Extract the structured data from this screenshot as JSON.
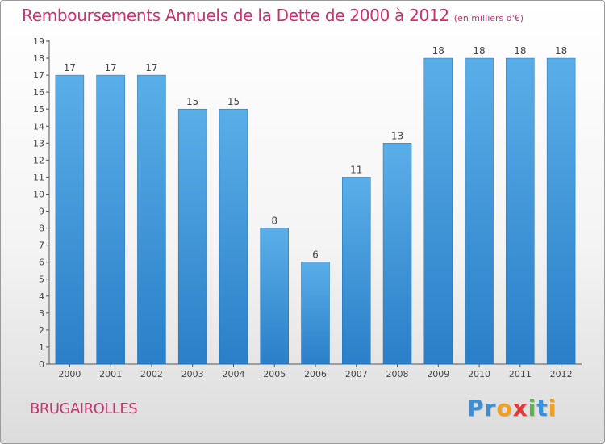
{
  "title": "Remboursements Annuels de la Dette de 2000 à 2012",
  "unit": "(en milliers d'€)",
  "place": "BRUGAIROLLES",
  "logo": {
    "text": "Proxiti",
    "letters": [
      "P",
      "r",
      "o",
      "x",
      "i",
      "t",
      "i"
    ],
    "colors": [
      "#3a8fd6",
      "#3a8fd6",
      "#f0a020",
      "#e03a3a",
      "#5ab54a",
      "#3a8fd6",
      "#f0a020"
    ]
  },
  "colors": {
    "title": "#c8326e",
    "bar": "#2a7fc8",
    "bar_light": "#5aaee8",
    "axis": "#555555"
  },
  "chart_data": {
    "type": "bar",
    "categories": [
      "2000",
      "2001",
      "2002",
      "2003",
      "2004",
      "2005",
      "2006",
      "2007",
      "2008",
      "2009",
      "2010",
      "2011",
      "2012"
    ],
    "values": [
      17,
      17,
      17,
      15,
      15,
      8,
      6,
      11,
      13,
      18,
      18,
      18,
      18
    ],
    "data_labels": [
      "17",
      "17",
      "17",
      "15",
      "15",
      "8",
      "6",
      "11",
      "13",
      "18",
      "18",
      "18",
      "18"
    ],
    "ylim": [
      0,
      19
    ],
    "yticks": [
      0,
      1,
      2,
      3,
      4,
      5,
      6,
      7,
      8,
      9,
      10,
      11,
      12,
      13,
      14,
      15,
      16,
      17,
      18,
      19
    ],
    "grid": false,
    "legend": "none"
  }
}
